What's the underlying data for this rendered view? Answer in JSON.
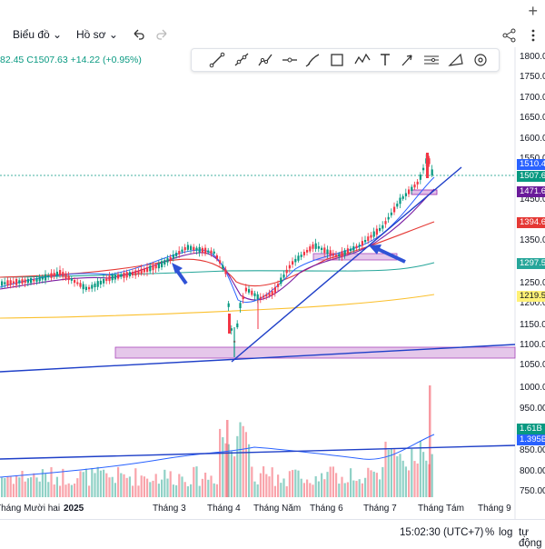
{
  "toolbar": {
    "chart_label": "Biểu đồ",
    "profile_label": "Hồ sơ",
    "undo_icon": "undo-icon",
    "redo_icon": "redo-icon",
    "draw_tools": [
      "trend-line-icon",
      "ray-icon",
      "extended-line-icon",
      "horizontal-line-icon",
      "brush-icon",
      "rectangle-icon",
      "path-icon",
      "text-icon",
      "arrow-icon",
      "fib-icon",
      "measure-icon",
      "target-icon"
    ],
    "share_icon": "share-icon",
    "more_icon": "more-icon",
    "plus_label": "+"
  },
  "legend": {
    "text": "82.45  C1507.63  +14.22 (+0.95%)"
  },
  "price_axis": {
    "ticks": [
      "1800.00",
      "1750.00",
      "1700.00",
      "1650.00",
      "1600.00",
      "1550.00",
      "1450.00",
      "1350.00",
      "1250.00",
      "1200.00",
      "1150.00",
      "1100.00",
      "1050.00"
    ],
    "badges": [
      {
        "text": "1510.4",
        "bg": "#2962ff",
        "fg": "#ffffff",
        "top": 175
      },
      {
        "text": "1507.6",
        "bg": "#089981",
        "fg": "#ffffff",
        "top": 188
      },
      {
        "text": "1471.6",
        "bg": "#6a1b9a",
        "fg": "#ffffff",
        "top": 205
      },
      {
        "text": "1394.6",
        "bg": "#e53935",
        "fg": "#ffffff",
        "top": 239
      },
      {
        "text": "1297.5",
        "bg": "#26a69a",
        "fg": "#ffffff",
        "top": 284
      },
      {
        "text": "1219.5",
        "bg": "#fff176",
        "fg": "#131722",
        "top": 320
      }
    ]
  },
  "volume_axis": {
    "ticks": [
      "1000.00",
      "950.00",
      "900.00",
      "850.00",
      "800.00",
      "750.00"
    ],
    "badges": [
      {
        "text": "1.61B",
        "bg": "#089981",
        "fg": "#ffffff",
        "top": 466
      },
      {
        "text": "1.395B",
        "bg": "#2962ff",
        "fg": "#ffffff",
        "top": 478
      }
    ]
  },
  "time_axis": {
    "labels": [
      "Tháng Mười hai",
      "2025",
      "Tháng 3",
      "Tháng 4",
      "Tháng Năm",
      "Tháng 6",
      "Tháng 7",
      "Tháng Tám",
      "Tháng 9"
    ]
  },
  "status": {
    "time": "15:02:30 (UTC+7)",
    "percent": "%",
    "log": "log",
    "auto": "tự động"
  },
  "colors": {
    "up": "#089981",
    "down": "#f23645",
    "trendline": "#1e3fc8",
    "zone": "#e1bee7",
    "zone_border": "#9c27b0"
  }
}
